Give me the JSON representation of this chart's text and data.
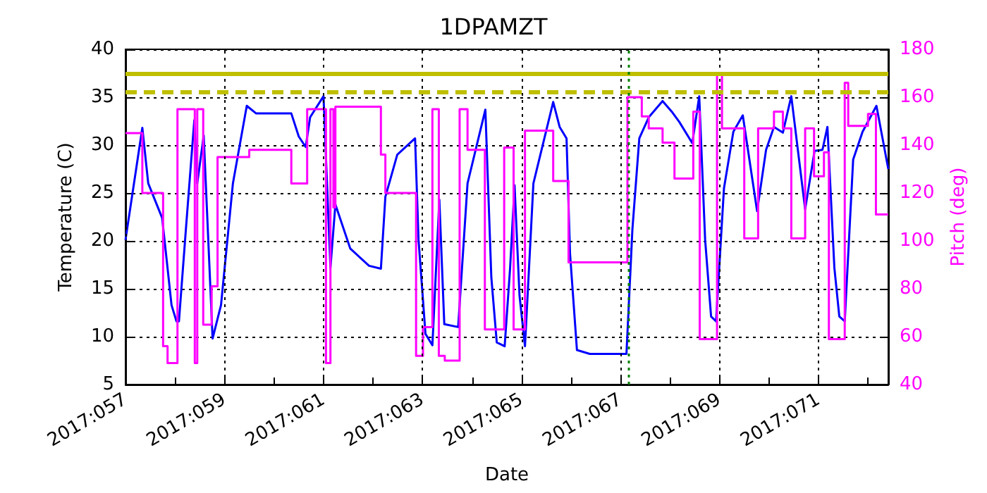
{
  "chart_data": {
    "type": "line",
    "title": "1DPAMZT",
    "xlabel": "Date",
    "ylabel": "Temperature (C)",
    "y2label": "Pitch (deg)",
    "xlim": [
      "2017-02-26T00:00",
      "2017-03-13T09:50"
    ],
    "xticks": [
      {
        "value": "2017-02-26",
        "label": "2017:057"
      },
      {
        "value": "2017-02-27",
        "label": null
      },
      {
        "value": "2017-02-28",
        "label": "2017:059"
      },
      {
        "value": "2017-03-01",
        "label": null
      },
      {
        "value": "2017-03-02",
        "label": "2017:061"
      },
      {
        "value": "2017-03-03",
        "label": null
      },
      {
        "value": "2017-03-04",
        "label": "2017:063"
      },
      {
        "value": "2017-03-05",
        "label": null
      },
      {
        "value": "2017-03-06",
        "label": "2017:065"
      },
      {
        "value": "2017-03-07",
        "label": null
      },
      {
        "value": "2017-03-08",
        "label": "2017:067"
      },
      {
        "value": "2017-03-09",
        "label": null
      },
      {
        "value": "2017-03-10",
        "label": "2017:069"
      },
      {
        "value": "2017-03-11",
        "label": null
      },
      {
        "value": "2017-03-12",
        "label": "2017:071"
      },
      {
        "value": "2017-03-13",
        "label": null
      }
    ],
    "ylim": [
      5,
      40
    ],
    "yticks": [
      5,
      10,
      15,
      20,
      25,
      30,
      35,
      40
    ],
    "y2lim": [
      40,
      180
    ],
    "y2ticks": [
      40,
      60,
      80,
      100,
      120,
      140,
      160,
      180
    ],
    "grid": true,
    "marker": "none",
    "series": [
      {
        "color": "#0000ff",
        "x": [
          "2017-02-26T00:00",
          "2017-02-26T08:10",
          "2017-02-26T11:02",
          "2017-02-26T17:46",
          "2017-02-26T22:19",
          "2017-02-27T00:43",
          "2017-02-27T01:55",
          "2017-02-27T05:17",
          "2017-02-27T09:22",
          "2017-02-27T10:48",
          "2017-02-27T13:55",
          "2017-02-27T18:14",
          "2017-02-27T22:19",
          "2017-02-28T04:05",
          "2017-02-28T10:48",
          "2017-02-28T15:22",
          "2017-03-01T08:24",
          "2017-03-01T12:00",
          "2017-03-01T15:22",
          "2017-03-01T17:31",
          "2017-03-02T00:00",
          "2017-03-02T03:22",
          "2017-03-02T05:46",
          "2017-03-02T12:58",
          "2017-03-02T22:05",
          "2017-03-03T03:50",
          "2017-03-03T06:00",
          "2017-03-03T11:46",
          "2017-03-03T20:24",
          "2017-03-03T22:05",
          "2017-03-04T01:26",
          "2017-03-04T04:48",
          "2017-03-04T08:10",
          "2017-03-04T10:34",
          "2017-03-04T17:17",
          "2017-03-04T21:50",
          "2017-03-05T06:29",
          "2017-03-05T09:22",
          "2017-03-05T12:00",
          "2017-03-05T15:50",
          "2017-03-05T18:29",
          "2017-03-05T20:38",
          "2017-03-05T23:02",
          "2017-03-06T01:41",
          "2017-03-06T05:46",
          "2017-03-06T15:22",
          "2017-03-06T18:29",
          "2017-03-06T21:50",
          "2017-03-06T23:31",
          "2017-03-07T02:53",
          "2017-03-07T09:07",
          "2017-03-08T02:53",
          "2017-03-08T05:46",
          "2017-03-08T09:07",
          "2017-03-08T13:41",
          "2017-03-08T20:24",
          "2017-03-09T01:12",
          "2017-03-09T04:34",
          "2017-03-09T10:48",
          "2017-03-09T14:10",
          "2017-03-09T17:02",
          "2017-03-09T19:55",
          "2017-03-09T22:19",
          "2017-03-10T02:10",
          "2017-03-10T06:43",
          "2017-03-10T11:17",
          "2017-03-10T18:14",
          "2017-03-10T22:34",
          "2017-03-11T02:24",
          "2017-03-11T06:43",
          "2017-03-11T10:48",
          "2017-03-11T17:31",
          "2017-03-11T22:05",
          "2017-03-12T01:55",
          "2017-03-12T04:19",
          "2017-03-12T07:41",
          "2017-03-12T10:05",
          "2017-03-12T12:43",
          "2017-03-12T16:48",
          "2017-03-12T21:22",
          "2017-03-13T04:05",
          "2017-03-13T09:50"
        ],
        "values": [
          20.1,
          31.8,
          26.0,
          22.4,
          13.3,
          11.6,
          11.6,
          21.2,
          32.6,
          26.0,
          31.0,
          9.8,
          13.3,
          26.0,
          34.1,
          33.3,
          33.3,
          30.9,
          29.8,
          32.9,
          35.1,
          17.2,
          23.8,
          19.2,
          17.4,
          17.1,
          24.6,
          29.0,
          30.7,
          20.1,
          10.3,
          9.1,
          24.3,
          11.3,
          11.0,
          26.0,
          33.7,
          16.2,
          9.4,
          9.0,
          17.2,
          25.8,
          14.3,
          9.0,
          26.0,
          34.5,
          31.9,
          30.7,
          18.7,
          8.6,
          8.2,
          8.2,
          21.2,
          30.7,
          32.9,
          34.6,
          33.4,
          32.4,
          30.2,
          35.1,
          20.1,
          12.1,
          11.6,
          25.5,
          31.4,
          33.1,
          23.1,
          29.5,
          31.9,
          31.3,
          35.1,
          23.3,
          29.4,
          29.5,
          31.9,
          17.2,
          12.1,
          11.6,
          28.5,
          31.4,
          34.1,
          27.5
        ]
      },
      {
        "type": "step",
        "axis": "y2",
        "color": "#ff00ff",
        "x": [
          "2017-02-26T00:00",
          "2017-02-26T08:10",
          "2017-02-26T18:14",
          "2017-02-26T20:24",
          "2017-02-27T01:12",
          "2017-02-27T09:36",
          "2017-02-27T10:48",
          "2017-02-27T13:41",
          "2017-02-27T17:46",
          "2017-02-27T20:38",
          "2017-02-28T12:00",
          "2017-03-01T08:24",
          "2017-03-01T16:05",
          "2017-03-02T01:12",
          "2017-03-02T03:22",
          "2017-03-02T04:48",
          "2017-03-02T05:46",
          "2017-03-03T03:50",
          "2017-03-03T06:00",
          "2017-03-03T20:53",
          "2017-03-04T00:14",
          "2017-03-04T04:48",
          "2017-03-04T07:55",
          "2017-03-04T10:48",
          "2017-03-04T18:00",
          "2017-03-04T21:50",
          "2017-03-05T06:14",
          "2017-03-05T15:36",
          "2017-03-05T20:10",
          "2017-03-06T01:41",
          "2017-03-06T15:22",
          "2017-03-06T22:48",
          "2017-03-08T03:22",
          "2017-03-08T10:19",
          "2017-03-08T13:41",
          "2017-03-08T20:24",
          "2017-03-09T02:10",
          "2017-03-09T11:17",
          "2017-03-09T14:24",
          "2017-03-09T22:48",
          "2017-03-10T01:12",
          "2017-03-10T12:00",
          "2017-03-10T18:43",
          "2017-03-11T02:24",
          "2017-03-11T06:43",
          "2017-03-11T10:48",
          "2017-03-11T17:31",
          "2017-03-11T21:50",
          "2017-03-12T02:38",
          "2017-03-12T05:02",
          "2017-03-12T12:43",
          "2017-03-12T14:24",
          "2017-03-13T00:00",
          "2017-03-13T03:50",
          "2017-03-13T09:50"
        ],
        "values": [
          145,
          120,
          56,
          49,
          155,
          49,
          155,
          65,
          81,
          135,
          138,
          124,
          155,
          49,
          155,
          114,
          156,
          136,
          120,
          52,
          64,
          155,
          52,
          50,
          155,
          138,
          63,
          139,
          63,
          146,
          125,
          91,
          160,
          152,
          147,
          141,
          126,
          154,
          59,
          170,
          147,
          101,
          147,
          154,
          147,
          101,
          147,
          127,
          137,
          59,
          166,
          148,
          153,
          111,
          111
        ]
      }
    ],
    "ref_lines": [
      {
        "axis": "y",
        "value": 37.5,
        "color": "#bfbf00",
        "line_style": "solid"
      },
      {
        "axis": "y",
        "value": 35.5,
        "color": "#bfbf00",
        "line_style": "dashed"
      },
      {
        "axis": "x",
        "value": "2017-03-08T04:05",
        "color": "#008000",
        "line_style": "dotted"
      }
    ]
  }
}
